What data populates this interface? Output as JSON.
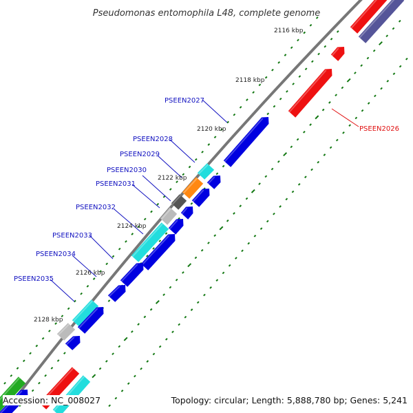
{
  "title": "Pseudomonas entomophila L48, complete genome",
  "footer": {
    "accession": "Accession: NC_008027",
    "summary": "Topology: circular; Length: 5,888,780 bp; Genes: 5,241"
  },
  "kbp_ticks": [
    "2116 kbp",
    "2118 kbp",
    "2120 kbp",
    "2122 kbp",
    "2124 kbp",
    "2126 kbp",
    "2128 kbp"
  ],
  "gene_labels": [
    "PSEEN2026",
    "PSEEN2027",
    "PSEEN2028",
    "PSEEN2029",
    "PSEEN2030",
    "PSEEN2031",
    "PSEEN2032",
    "PSEEN2033",
    "PSEEN2034",
    "PSEEN2035"
  ],
  "colors": {
    "label_blue": "#1010c0",
    "label_red": "#e01010",
    "gene_blue": "#0000e0",
    "gene_red": "#ee1111",
    "gene_cyan": "#22dddd",
    "gene_orange": "#ff8811",
    "gene_grey": "#bbbbbb",
    "gene_darkgrey": "#555555",
    "gene_navy": "#555599",
    "gene_green": "#22aa22",
    "backbone": "#777777",
    "tick_green": "#117711"
  }
}
